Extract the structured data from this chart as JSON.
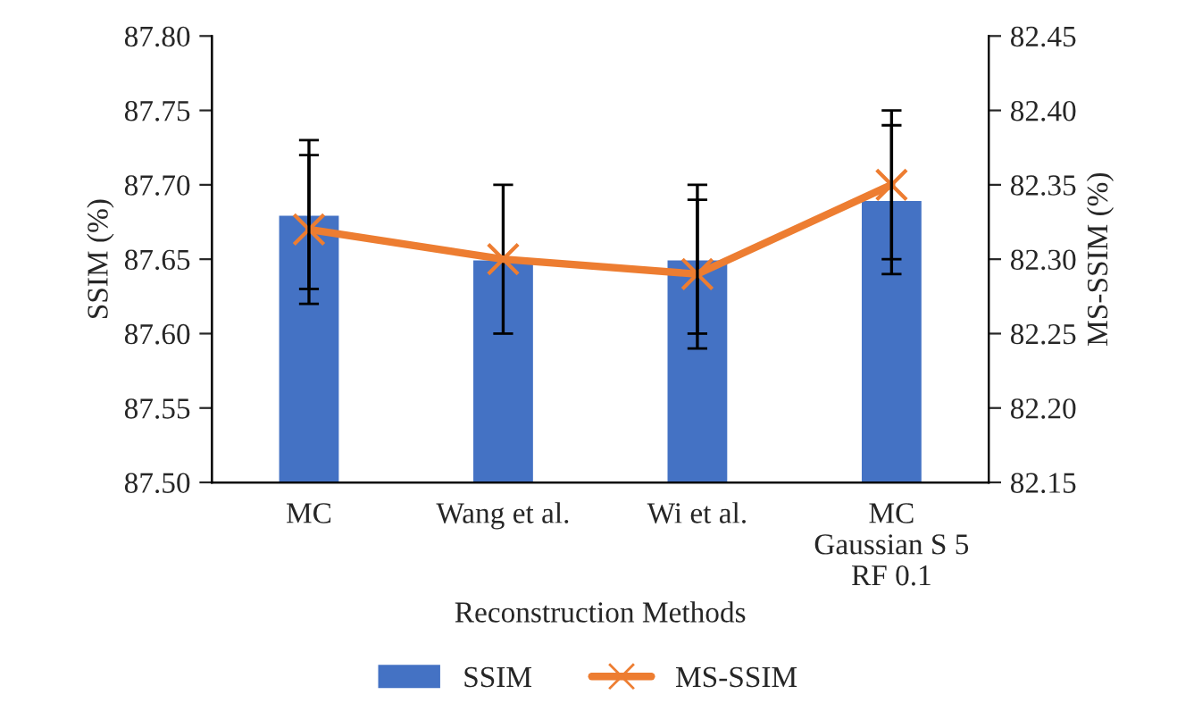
{
  "chart_data": {
    "type": "bar",
    "xlabel": "Reconstruction Methods",
    "ylabel": "SSIM (%)",
    "y2label": "MS-SSIM (%)",
    "categories": [
      "MC",
      "Wang et al.",
      "Wi et al.",
      "MC\nGaussian S 5\nRF 0.1"
    ],
    "series": [
      {
        "name": "SSIM",
        "color": "#4472c4",
        "values": [
          87.68,
          87.65,
          87.65,
          87.69
        ],
        "errors": [
          0.05,
          0.05,
          0.05,
          0.05
        ]
      },
      {
        "name": "MS-SSIM",
        "type": "line",
        "axis": "y2",
        "color": "#ed7d31",
        "marker": "cross",
        "values": [
          82.32,
          82.3,
          82.29,
          82.35
        ],
        "errors": [
          0.05,
          null,
          0.05,
          0.05
        ]
      }
    ],
    "ylim": [
      87.5,
      87.8
    ],
    "yticks": [
      {
        "value": 87.5,
        "label": "87.50"
      },
      {
        "value": 87.55,
        "label": "87.55"
      },
      {
        "value": 87.6,
        "label": "87.60"
      },
      {
        "value": 87.65,
        "label": "87.65"
      },
      {
        "value": 87.7,
        "label": "87.70"
      },
      {
        "value": 87.75,
        "label": "87.75"
      },
      {
        "value": 87.8,
        "label": "87.80"
      }
    ],
    "y2lim": [
      82.15,
      82.45
    ],
    "y2ticks": [
      {
        "value": 82.15,
        "label": "82.15"
      },
      {
        "value": 82.2,
        "label": "82.20"
      },
      {
        "value": 82.25,
        "label": "82.25"
      },
      {
        "value": 82.3,
        "label": "82.30"
      },
      {
        "value": 82.35,
        "label": "82.35"
      },
      {
        "value": 82.4,
        "label": "82.40"
      },
      {
        "value": 82.45,
        "label": "82.45"
      }
    ],
    "grid": false,
    "legend": "bottom"
  }
}
